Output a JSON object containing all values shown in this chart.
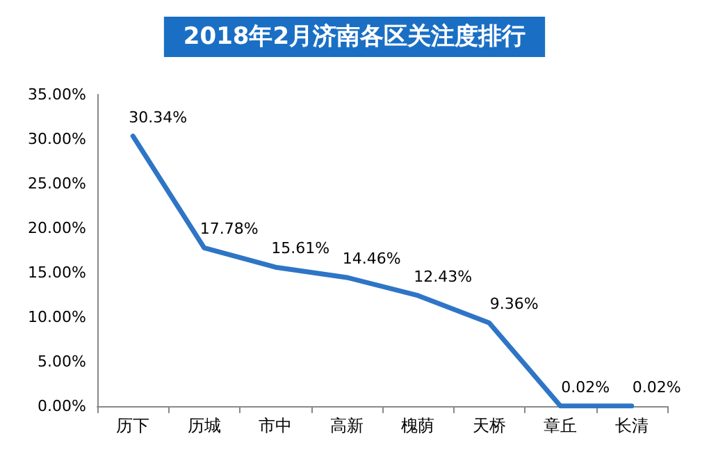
{
  "chart_data": {
    "type": "line",
    "title": "2018年2月济南各区关注度排行",
    "categories": [
      "历下",
      "历城",
      "市中",
      "高新",
      "槐荫",
      "天桥",
      "章丘",
      "长清"
    ],
    "series": [
      {
        "color": "#2e75c6",
        "values": [
          30.34,
          17.78,
          15.61,
          14.46,
          12.43,
          9.36,
          0.02,
          0.02
        ],
        "value_labels": [
          "30.34%",
          "17.78%",
          "15.61%",
          "14.46%",
          "12.43%",
          "9.36%",
          "0.02%",
          "0.02%"
        ]
      }
    ],
    "ylim": [
      0,
      35
    ],
    "yticks": [
      {
        "value": 0,
        "label": "0.00%"
      },
      {
        "value": 5,
        "label": "5.00%"
      },
      {
        "value": 10,
        "label": "10.00%"
      },
      {
        "value": 15,
        "label": "15.00%"
      },
      {
        "value": 20,
        "label": "20.00%"
      },
      {
        "value": 25,
        "label": "25.00%"
      },
      {
        "value": 30,
        "label": "30.00%"
      },
      {
        "value": 35,
        "label": "35.00%"
      }
    ],
    "grid": false,
    "marker": "none",
    "line_style": "solid"
  }
}
